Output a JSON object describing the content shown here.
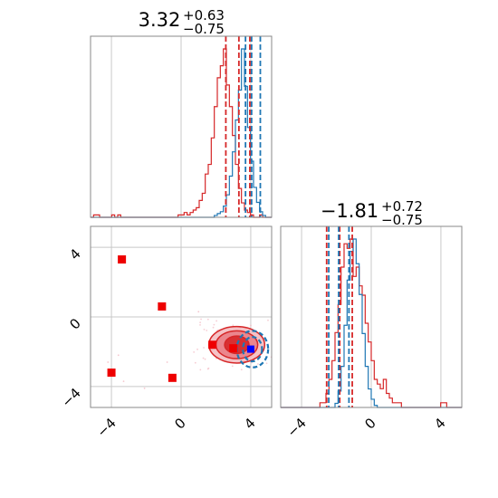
{
  "chart_data": {
    "type": "corner",
    "parameter_titles": [
      {
        "value": "3.32",
        "upper": "+0.63",
        "lower": "−0.75"
      },
      {
        "value": "−1.81",
        "upper": "+0.72",
        "lower": "−0.75"
      }
    ],
    "axis_range": [
      -5.2,
      5.2
    ],
    "ticks": [
      -4,
      0,
      4
    ],
    "tick_labels": [
      "−4",
      "0",
      "4"
    ],
    "grid": true,
    "colors": {
      "red": "#d62728",
      "blue": "#1f77b4",
      "marker": "#ee0000",
      "truth": "#0000ff"
    },
    "hist_p1": {
      "red_edges": [
        -5.2,
        5.2
      ],
      "red_counts": [
        0,
        1,
        1,
        0,
        0,
        0,
        0,
        1,
        0,
        1,
        0,
        0,
        0,
        0,
        0,
        0,
        0,
        0,
        0,
        0,
        0,
        0,
        0,
        0,
        0,
        0,
        0,
        0,
        0,
        1,
        1,
        2,
        1,
        2,
        3,
        4,
        7,
        10,
        18,
        22,
        33,
        46,
        58,
        63,
        70,
        55,
        46,
        34,
        22,
        12,
        6,
        3,
        2,
        1,
        0,
        0,
        1,
        0,
        0,
        0
      ],
      "blue_counts": [
        0,
        0,
        0,
        0,
        0,
        0,
        0,
        0,
        0,
        0,
        0,
        0,
        0,
        0,
        0,
        0,
        0,
        0,
        0,
        0,
        0,
        0,
        0,
        0,
        0,
        0,
        0,
        0,
        0,
        0,
        0,
        0,
        0,
        0,
        0,
        0,
        0,
        0,
        0,
        0,
        0,
        1,
        2,
        3,
        6,
        12,
        22,
        35,
        52,
        68,
        90,
        70,
        48,
        30,
        16,
        8,
        3,
        1,
        0,
        0
      ],
      "red_quantiles": [
        2.57,
        3.32,
        3.95
      ],
      "blue_quantiles": [
        3.7,
        4.05,
        4.55
      ]
    },
    "hist_p2": {
      "red_counts": [
        0,
        0,
        0,
        0,
        0,
        0,
        0,
        0,
        0,
        0,
        0,
        0,
        0,
        1,
        1,
        3,
        6,
        10,
        16,
        22,
        30,
        35,
        34,
        36,
        28,
        30,
        26,
        24,
        18,
        14,
        10,
        6,
        5,
        4,
        6,
        3,
        2,
        1,
        1,
        1,
        0,
        0,
        0,
        0,
        0,
        0,
        0,
        0,
        0,
        0,
        0,
        0,
        0,
        1,
        1,
        0,
        0,
        0,
        0,
        0
      ],
      "blue_counts": [
        0,
        0,
        0,
        0,
        0,
        0,
        0,
        0,
        0,
        0,
        0,
        0,
        0,
        0,
        0,
        0,
        0,
        0,
        2,
        8,
        20,
        40,
        62,
        76,
        82,
        70,
        55,
        36,
        20,
        9,
        4,
        1,
        0,
        0,
        0,
        0,
        0,
        0,
        0,
        0,
        0,
        0,
        0,
        0,
        0,
        0,
        0,
        0,
        0,
        0,
        0,
        0,
        0,
        0,
        0,
        0,
        0,
        0,
        0,
        0
      ],
      "red_quantiles": [
        -2.56,
        -1.81,
        -1.09
      ],
      "blue_quantiles": [
        -2.44,
        -1.87,
        -1.28
      ]
    },
    "scatter_red": {
      "center": [
        3.2,
        -1.6
      ],
      "contour_radii": [
        [
          1.6,
          1.05
        ],
        [
          1.2,
          0.8
        ],
        [
          0.7,
          0.5
        ]
      ]
    },
    "scatter_blue": {
      "center": [
        4.1,
        -1.85
      ],
      "contour_radii": [
        [
          0.9,
          1.05
        ],
        [
          0.55,
          0.7
        ]
      ]
    },
    "markers": [
      {
        "x": -3.4,
        "y": 3.3
      },
      {
        "x": -1.1,
        "y": 0.6
      },
      {
        "x": -4.0,
        "y": -3.2
      },
      {
        "x": -0.5,
        "y": -3.5
      },
      {
        "x": 1.8,
        "y": -1.6
      },
      {
        "x": 3.0,
        "y": -1.8
      }
    ],
    "truth_point": {
      "x": 4.0,
      "y": -1.85
    }
  }
}
